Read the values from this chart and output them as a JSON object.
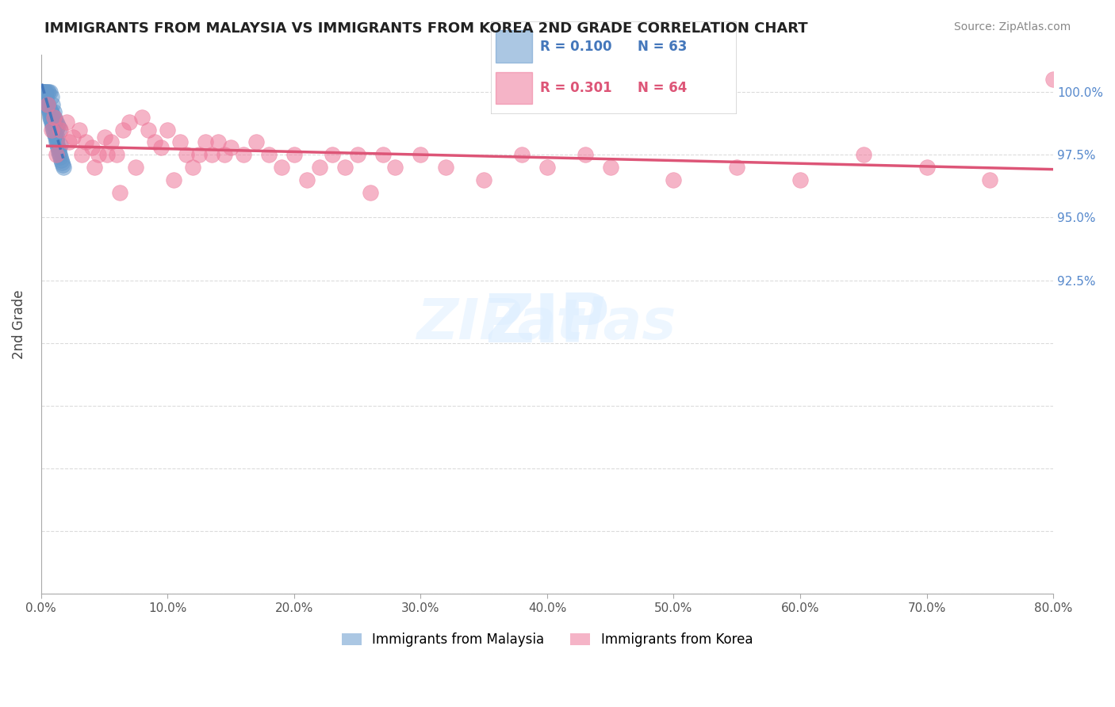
{
  "title": "IMMIGRANTS FROM MALAYSIA VS IMMIGRANTS FROM KOREA 2ND GRADE CORRELATION CHART",
  "source": "Source: ZipAtlas.com",
  "xlabel": "",
  "ylabel": "2nd Grade",
  "xlim": [
    0.0,
    80.0
  ],
  "ylim": [
    80.0,
    101.5
  ],
  "yticks": [
    80.0,
    82.5,
    85.0,
    87.5,
    90.0,
    92.5,
    95.0,
    97.5,
    100.0
  ],
  "ytick_labels_right": [
    "",
    "",
    "",
    "",
    "",
    "92.5%",
    "95.0%",
    "97.5%",
    "100.0%"
  ],
  "xticks": [
    0.0,
    10.0,
    20.0,
    30.0,
    40.0,
    50.0,
    60.0,
    70.0,
    80.0
  ],
  "xtick_labels": [
    "0.0%",
    "10.0%",
    "20.0%",
    "30.0%",
    "40.0%",
    "50.0%",
    "60.0%",
    "70.0%",
    "80.0%"
  ],
  "series1_color": "#6699cc",
  "series2_color": "#ee7799",
  "series1_label": "Immigrants from Malaysia",
  "series2_label": "Immigrants from Korea",
  "R1": 0.1,
  "N1": 63,
  "R2": 0.301,
  "N2": 64,
  "legend_R1_color": "#4477bb",
  "legend_R2_color": "#dd5577",
  "watermark": "ZIPatlas",
  "malaysia_x": [
    0.2,
    0.3,
    0.4,
    0.5,
    0.6,
    0.7,
    0.8,
    0.9,
    1.0,
    1.1,
    1.2,
    1.3,
    1.5,
    0.1,
    0.15,
    0.25,
    0.35,
    0.45,
    0.55,
    0.65,
    0.75,
    0.85,
    0.95,
    1.05,
    1.15,
    1.25,
    1.35,
    1.45,
    0.05,
    0.08,
    0.12,
    0.18,
    0.22,
    0.28,
    0.32,
    0.38,
    0.42,
    0.48,
    0.52,
    0.58,
    0.62,
    0.68,
    0.72,
    0.78,
    0.82,
    0.88,
    0.92,
    0.98,
    1.02,
    1.08,
    1.12,
    1.18,
    1.22,
    1.28,
    1.32,
    1.38,
    1.42,
    1.48,
    1.55,
    1.6,
    1.65,
    1.7,
    1.75
  ],
  "malaysia_y": [
    100.0,
    100.0,
    100.0,
    100.0,
    100.0,
    100.0,
    99.8,
    99.5,
    99.2,
    98.8,
    98.5,
    98.2,
    97.9,
    99.9,
    99.85,
    99.75,
    99.65,
    99.55,
    99.45,
    99.35,
    99.25,
    99.15,
    99.05,
    98.95,
    98.85,
    98.75,
    98.65,
    98.55,
    100.0,
    100.0,
    100.0,
    100.0,
    100.0,
    99.9,
    99.8,
    99.7,
    99.6,
    99.5,
    99.4,
    99.3,
    99.2,
    99.1,
    99.0,
    98.9,
    98.8,
    98.7,
    98.6,
    98.5,
    98.4,
    98.3,
    98.2,
    98.1,
    98.0,
    97.9,
    97.8,
    97.7,
    97.6,
    97.5,
    97.4,
    97.3,
    97.2,
    97.1,
    97.0
  ],
  "korea_x": [
    0.5,
    1.0,
    1.5,
    2.0,
    2.5,
    3.0,
    3.5,
    4.0,
    4.5,
    5.0,
    5.5,
    6.0,
    6.5,
    7.0,
    7.5,
    8.0,
    8.5,
    9.0,
    9.5,
    10.0,
    10.5,
    11.0,
    11.5,
    12.0,
    12.5,
    13.0,
    13.5,
    14.0,
    14.5,
    15.0,
    16.0,
    17.0,
    18.0,
    19.0,
    20.0,
    21.0,
    22.0,
    23.0,
    24.0,
    25.0,
    26.0,
    27.0,
    28.0,
    30.0,
    32.0,
    35.0,
    38.0,
    40.0,
    43.0,
    45.0,
    50.0,
    55.0,
    60.0,
    65.0,
    70.0,
    75.0,
    80.0,
    0.8,
    1.2,
    2.2,
    3.2,
    4.2,
    5.2,
    6.2
  ],
  "korea_y": [
    99.5,
    99.0,
    98.5,
    98.8,
    98.2,
    98.5,
    98.0,
    97.8,
    97.5,
    98.2,
    98.0,
    97.5,
    98.5,
    98.8,
    97.0,
    99.0,
    98.5,
    98.0,
    97.8,
    98.5,
    96.5,
    98.0,
    97.5,
    97.0,
    97.5,
    98.0,
    97.5,
    98.0,
    97.5,
    97.8,
    97.5,
    98.0,
    97.5,
    97.0,
    97.5,
    96.5,
    97.0,
    97.5,
    97.0,
    97.5,
    96.0,
    97.5,
    97.0,
    97.5,
    97.0,
    96.5,
    97.5,
    97.0,
    97.5,
    97.0,
    96.5,
    97.0,
    96.5,
    97.5,
    97.0,
    96.5,
    100.5,
    98.5,
    97.5,
    98.0,
    97.5,
    97.0,
    97.5,
    96.0
  ]
}
